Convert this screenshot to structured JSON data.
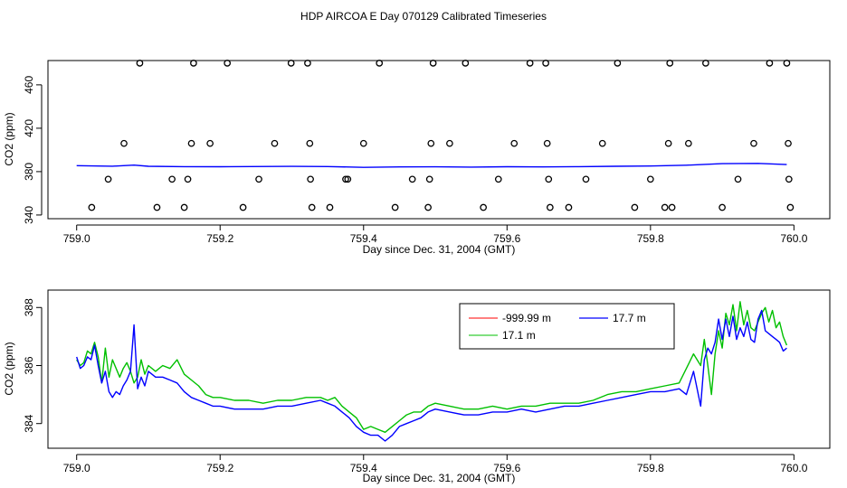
{
  "figure": {
    "title": "HDP AIRCOA E  Day 070129  Calibrated Timeseries"
  },
  "chart_data": [
    {
      "type": "scatter",
      "xlabel": "Day since Dec. 31, 2004 (GMT)",
      "ylabel": "CO2 (ppm)",
      "xlim": [
        758.96,
        760.05
      ],
      "ylim": [
        336.6,
        482.4
      ],
      "x_ticks": [
        759.0,
        759.2,
        759.4,
        759.6,
        759.8,
        760.0
      ],
      "x_tick_labels": [
        "759.0",
        "759.2",
        "759.4",
        "759.6",
        "759.8",
        "760.0"
      ],
      "y_ticks": [
        340,
        380,
        420,
        460
      ],
      "y_tick_labels": [
        "340",
        "380",
        "420",
        "460"
      ],
      "series": [
        {
          "color": "#000000",
          "marker": "open-circle",
          "x": [
            759.021,
            759.066,
            759.044,
            759.088,
            759.112,
            759.133,
            759.15,
            759.155,
            759.16,
            759.163,
            759.186,
            759.21,
            759.232,
            759.254,
            759.276,
            759.299,
            759.322,
            759.325,
            759.326,
            759.328,
            759.353,
            759.375,
            759.378,
            759.4,
            759.422,
            759.444,
            759.468,
            759.49,
            759.492,
            759.494,
            759.497,
            759.52,
            759.542,
            759.567,
            759.588,
            759.61,
            759.632,
            759.654,
            759.656,
            759.658,
            759.66,
            759.686,
            759.71,
            759.733,
            759.754,
            759.778,
            759.8,
            759.82,
            759.825,
            759.827,
            759.83,
            759.853,
            759.877,
            759.9,
            759.922,
            759.944,
            759.966,
            759.99,
            759.992,
            759.993,
            759.995
          ],
          "y": [
            347,
            406,
            373,
            480,
            347,
            373,
            347,
            373,
            406,
            480,
            406,
            480,
            347,
            373,
            406,
            480,
            480,
            406,
            373,
            347,
            347,
            373,
            373,
            406,
            480,
            347,
            373,
            347,
            373,
            406,
            480,
            406,
            480,
            347,
            373,
            406,
            480,
            480,
            406,
            373,
            347,
            347,
            373,
            406,
            480,
            347,
            373,
            347,
            406,
            480,
            347,
            406,
            480,
            347,
            373,
            406,
            480,
            480,
            406,
            373,
            347
          ]
        },
        {
          "color": "#0000ff",
          "style": "line",
          "x": [
            759.0,
            759.05,
            759.08,
            759.1,
            759.15,
            759.2,
            759.3,
            759.35,
            759.4,
            759.45,
            759.5,
            759.55,
            759.6,
            759.65,
            759.7,
            759.75,
            759.8,
            759.85,
            759.9,
            759.95,
            759.99
          ],
          "y": [
            385.5,
            385.0,
            386.0,
            384.9,
            384.6,
            384.5,
            384.8,
            384.7,
            383.9,
            384.3,
            384.4,
            384.2,
            384.5,
            384.3,
            384.6,
            384.9,
            385.2,
            385.9,
            387.3,
            387.6,
            386.5
          ]
        }
      ]
    },
    {
      "type": "line",
      "xlabel": "Day since Dec. 31, 2004 (GMT)",
      "ylabel": "CO2 (ppm)",
      "xlim": [
        758.96,
        760.05
      ],
      "ylim": [
        383.15,
        388.6
      ],
      "x_ticks": [
        759.0,
        759.2,
        759.4,
        759.6,
        759.8,
        760.0
      ],
      "x_tick_labels": [
        "759.0",
        "759.2",
        "759.4",
        "759.6",
        "759.8",
        "760.0"
      ],
      "y_ticks": [
        384,
        386,
        388
      ],
      "y_tick_labels": [
        "384",
        "386",
        "388"
      ],
      "legend": {
        "placement": "top-right",
        "entries": [
          {
            "label": "-999.99 m",
            "color": "#ff0000"
          },
          {
            "label": "17.7 m",
            "color": "#0000ff"
          },
          {
            "label": "17.1 m",
            "color": "#00c000"
          }
        ]
      },
      "series": [
        {
          "name": "17.1 m",
          "color": "#00c000",
          "x": [
            759.0,
            759.005,
            759.01,
            759.015,
            759.02,
            759.025,
            759.03,
            759.035,
            759.04,
            759.045,
            759.05,
            759.055,
            759.06,
            759.065,
            759.07,
            759.075,
            759.08,
            759.085,
            759.09,
            759.095,
            759.1,
            759.11,
            759.12,
            759.13,
            759.14,
            759.15,
            759.16,
            759.17,
            759.18,
            759.19,
            759.2,
            759.22,
            759.24,
            759.26,
            759.28,
            759.3,
            759.32,
            759.34,
            759.35,
            759.36,
            759.37,
            759.38,
            759.39,
            759.4,
            759.41,
            759.42,
            759.43,
            759.44,
            759.45,
            759.46,
            759.47,
            759.48,
            759.49,
            759.5,
            759.52,
            759.54,
            759.56,
            759.58,
            759.6,
            759.62,
            759.64,
            759.66,
            759.68,
            759.7,
            759.72,
            759.74,
            759.76,
            759.78,
            759.8,
            759.82,
            759.84,
            759.85,
            759.86,
            759.87,
            759.875,
            759.88,
            759.885,
            759.89,
            759.895,
            759.9,
            759.905,
            759.91,
            759.915,
            759.92,
            759.925,
            759.93,
            759.935,
            759.94,
            759.945,
            759.95,
            759.955,
            759.96,
            759.965,
            759.97,
            759.975,
            759.98,
            759.985,
            759.99
          ],
          "y": [
            386.2,
            386.0,
            386.1,
            386.5,
            386.4,
            386.8,
            386.3,
            385.4,
            386.6,
            385.6,
            386.2,
            385.9,
            385.6,
            385.9,
            386.1,
            385.8,
            385.4,
            385.6,
            386.2,
            385.7,
            386.0,
            385.8,
            386.0,
            385.9,
            386.2,
            385.7,
            385.5,
            385.3,
            385.0,
            384.9,
            384.9,
            384.8,
            384.8,
            384.7,
            384.8,
            384.8,
            384.9,
            384.9,
            384.8,
            384.9,
            384.6,
            384.4,
            384.2,
            383.8,
            383.9,
            383.8,
            383.7,
            383.9,
            384.1,
            384.3,
            384.4,
            384.4,
            384.6,
            384.7,
            384.6,
            384.5,
            384.5,
            384.6,
            384.5,
            384.6,
            384.6,
            384.7,
            384.7,
            384.7,
            384.8,
            385.0,
            385.1,
            385.1,
            385.2,
            385.3,
            385.4,
            385.9,
            386.4,
            386.0,
            386.9,
            386.0,
            385.0,
            386.4,
            387.2,
            386.6,
            387.8,
            387.4,
            388.1,
            387.2,
            388.2,
            387.4,
            387.9,
            387.3,
            387.2,
            387.5,
            387.8,
            388.0,
            387.5,
            387.9,
            387.3,
            387.5,
            387.0,
            386.7
          ]
        },
        {
          "name": "17.7 m",
          "color": "#0000ff",
          "x": [
            759.0,
            759.005,
            759.01,
            759.015,
            759.02,
            759.025,
            759.03,
            759.035,
            759.04,
            759.045,
            759.05,
            759.055,
            759.06,
            759.065,
            759.07,
            759.075,
            759.08,
            759.085,
            759.09,
            759.095,
            759.1,
            759.11,
            759.12,
            759.13,
            759.14,
            759.15,
            759.16,
            759.17,
            759.18,
            759.19,
            759.2,
            759.22,
            759.24,
            759.26,
            759.28,
            759.3,
            759.32,
            759.34,
            759.35,
            759.36,
            759.37,
            759.38,
            759.39,
            759.4,
            759.41,
            759.42,
            759.43,
            759.44,
            759.45,
            759.46,
            759.47,
            759.48,
            759.49,
            759.5,
            759.52,
            759.54,
            759.56,
            759.58,
            759.6,
            759.62,
            759.64,
            759.66,
            759.68,
            759.7,
            759.72,
            759.74,
            759.76,
            759.78,
            759.8,
            759.82,
            759.84,
            759.85,
            759.86,
            759.87,
            759.875,
            759.88,
            759.885,
            759.89,
            759.895,
            759.9,
            759.905,
            759.91,
            759.915,
            759.92,
            759.925,
            759.93,
            759.935,
            759.94,
            759.945,
            759.95,
            759.955,
            759.96,
            759.965,
            759.97,
            759.975,
            759.98,
            759.985,
            759.99
          ],
          "y": [
            386.3,
            385.9,
            386.0,
            386.3,
            386.2,
            386.7,
            386.0,
            385.4,
            385.8,
            385.1,
            384.9,
            385.1,
            385.0,
            385.3,
            385.5,
            385.8,
            387.4,
            385.2,
            385.6,
            385.3,
            385.8,
            385.6,
            385.6,
            385.5,
            385.4,
            385.1,
            384.9,
            384.8,
            384.7,
            384.6,
            384.6,
            384.5,
            384.5,
            384.5,
            384.6,
            384.6,
            384.7,
            384.8,
            384.7,
            384.6,
            384.4,
            384.2,
            383.9,
            383.7,
            383.6,
            383.6,
            383.4,
            383.6,
            383.9,
            384.0,
            384.1,
            384.2,
            384.4,
            384.5,
            384.4,
            384.3,
            384.3,
            384.4,
            384.4,
            384.5,
            384.4,
            384.5,
            384.6,
            384.6,
            384.7,
            384.8,
            384.9,
            385.0,
            385.1,
            385.1,
            385.2,
            385.0,
            385.8,
            384.6,
            386.2,
            386.6,
            386.4,
            386.8,
            387.6,
            386.9,
            387.6,
            387.0,
            387.7,
            386.9,
            387.3,
            387.0,
            387.5,
            386.9,
            386.8,
            387.6,
            387.9,
            387.2,
            387.1,
            387.0,
            386.9,
            386.8,
            386.5,
            386.6
          ]
        }
      ]
    }
  ]
}
